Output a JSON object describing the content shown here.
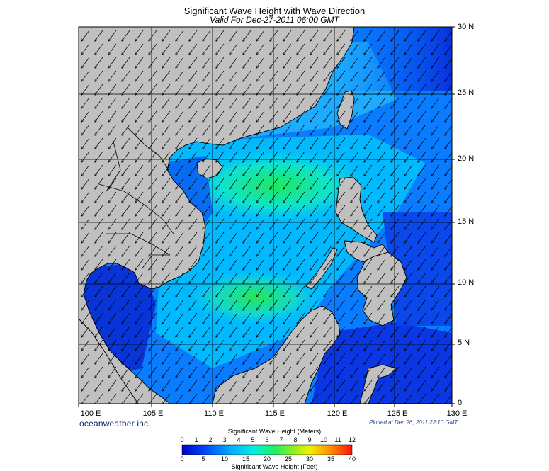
{
  "header": {
    "title": "Significant Wave Height with Wave Direction",
    "subtitle": "Valid For Dec-27-2011 06:00 GMT"
  },
  "axes": {
    "lat_labels": [
      "30 N",
      "25 N",
      "20 N",
      "15 N",
      "10 N",
      "5 N",
      "0"
    ],
    "lon_labels": [
      "100 E",
      "105 E",
      "110 E",
      "115 E",
      "120 E",
      "125 E",
      "130 E"
    ]
  },
  "footer": {
    "brand": "oceanweather inc.",
    "plotted": "Plotted at Dec 26, 2011 22:10 GMT"
  },
  "colorbar": {
    "title_meters": "Significant Wave Height (Meters)",
    "title_feet": "Significant Wave Height (Feet)",
    "meters_ticks": [
      "0",
      "1",
      "2",
      "3",
      "4",
      "5",
      "6",
      "7",
      "8",
      "9",
      "10",
      "11",
      "12"
    ],
    "feet_ticks": [
      "0",
      "5",
      "10",
      "15",
      "20",
      "25",
      "30",
      "35",
      "40"
    ]
  },
  "colors": {
    "land": "#c0c0c0",
    "deep_blue": "#0a1fd0",
    "cyan": "#00e0ff",
    "green": "#2ee64a"
  },
  "wave_direction": "arrows pointing toward southwest"
}
